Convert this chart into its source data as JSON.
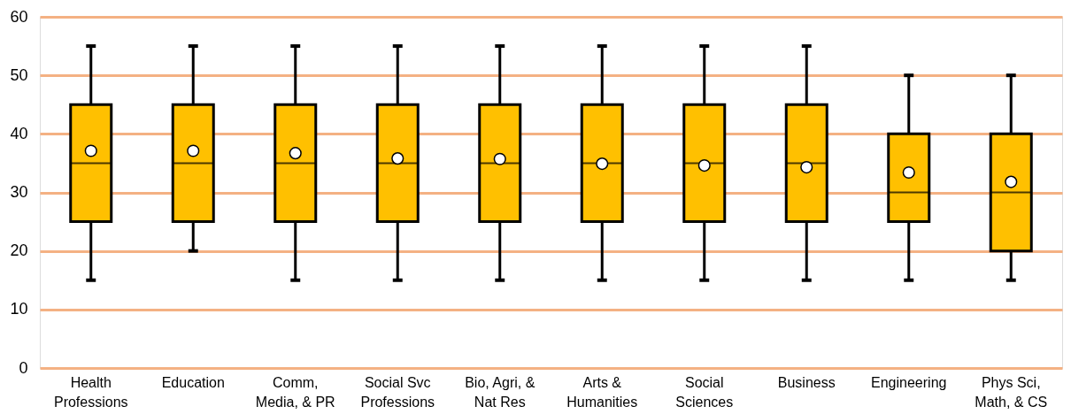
{
  "chart_data": {
    "type": "box",
    "categories": [
      "Health\nProfessions",
      "Education",
      "Comm,\nMedia, & PR",
      "Social Svc\nProfessions",
      "Bio, Agri, &\nNat Res",
      "Arts &\nHumanities",
      "Social\nSciences",
      "Business",
      "Engineering",
      "Phys Sci,\nMath, & CS"
    ],
    "color": "#ffc000",
    "boxes": [
      {
        "low": 15,
        "q1": 25,
        "median": 35,
        "q3": 45,
        "high": 55,
        "mean": 37.1
      },
      {
        "low": 20,
        "q1": 25,
        "median": 35,
        "q3": 45,
        "high": 55,
        "mean": 37.1
      },
      {
        "low": 15,
        "q1": 25,
        "median": 35,
        "q3": 45,
        "high": 55,
        "mean": 36.7
      },
      {
        "low": 15,
        "q1": 25,
        "median": 35,
        "q3": 45,
        "high": 55,
        "mean": 35.8
      },
      {
        "low": 15,
        "q1": 25,
        "median": 35,
        "q3": 45,
        "high": 55,
        "mean": 35.7
      },
      {
        "low": 15,
        "q1": 25,
        "median": 35,
        "q3": 45,
        "high": 55,
        "mean": 34.9
      },
      {
        "low": 15,
        "q1": 25,
        "median": 35,
        "q3": 45,
        "high": 55,
        "mean": 34.6
      },
      {
        "low": 15,
        "q1": 25,
        "median": 35,
        "q3": 45,
        "high": 55,
        "mean": 34.3
      },
      {
        "low": 15,
        "q1": 25,
        "median": 30,
        "q3": 40,
        "high": 50,
        "mean": 33.4
      },
      {
        "low": 15,
        "q1": 20,
        "median": 30,
        "q3": 40,
        "high": 50,
        "mean": 31.8
      }
    ],
    "ylim": [
      0,
      60
    ],
    "yticks": [
      0,
      10,
      20,
      30,
      40,
      50,
      60
    ],
    "grid": "y"
  }
}
